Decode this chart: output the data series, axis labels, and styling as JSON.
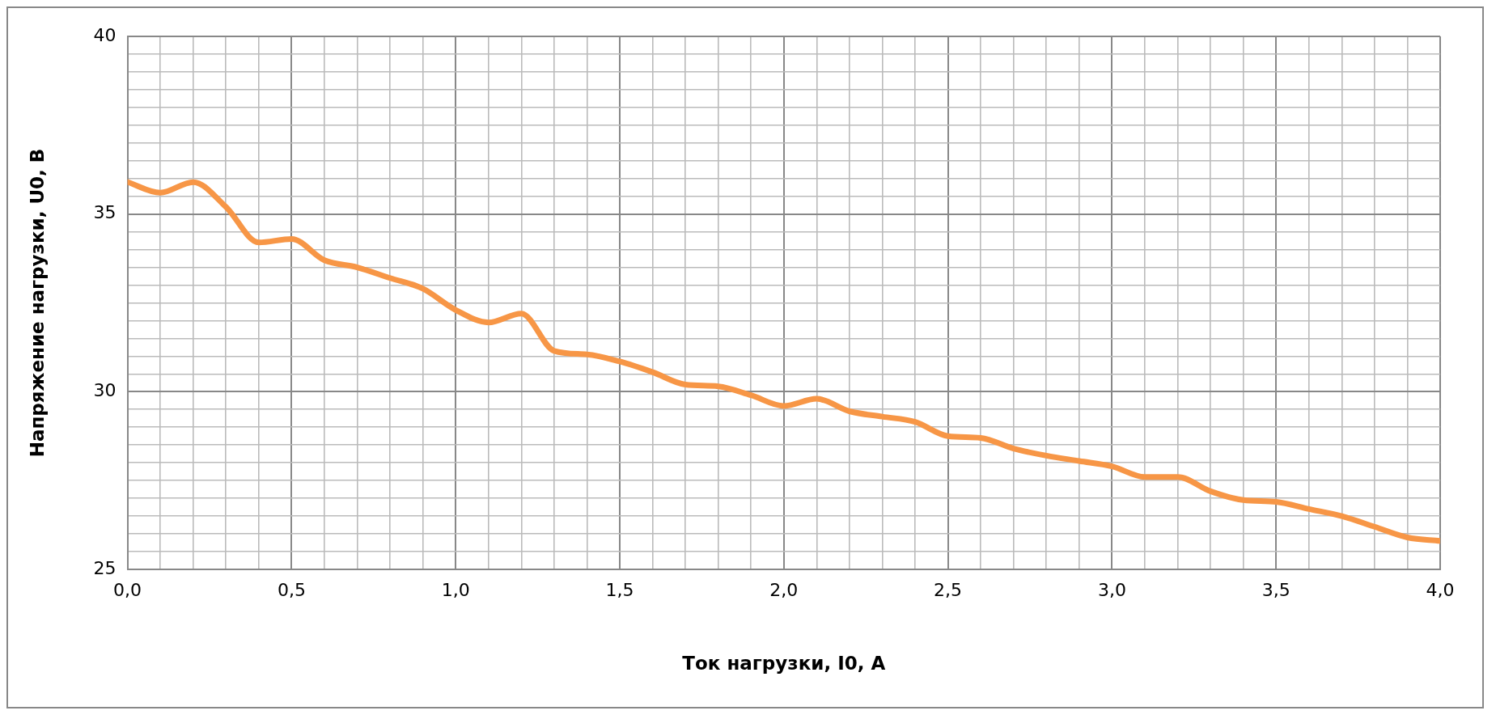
{
  "chart_data": {
    "type": "line",
    "xlabel": "Ток нагрузки, I0, А",
    "ylabel": "Напряжение нагрузки, U0, В",
    "x": [
      0,
      0.1,
      0.2,
      0.3,
      0.4,
      0.5,
      0.6,
      0.7,
      0.8,
      0.9,
      1.0,
      1.1,
      1.2,
      1.3,
      1.4,
      1.5,
      1.6,
      1.7,
      1.8,
      1.9,
      2.0,
      2.1,
      2.2,
      2.3,
      2.4,
      2.5,
      2.6,
      2.7,
      2.8,
      2.9,
      3.0,
      3.1,
      3.2,
      3.3,
      3.4,
      3.5,
      3.6,
      3.7,
      3.8,
      3.9,
      4.0
    ],
    "series": [
      {
        "color": "#f79646",
        "values": [
          35.9,
          35.6,
          35.9,
          35.2,
          34.2,
          34.3,
          33.7,
          33.5,
          33.2,
          32.9,
          32.3,
          31.95,
          32.2,
          31.15,
          31.05,
          30.85,
          30.55,
          30.2,
          30.15,
          29.9,
          29.6,
          29.8,
          29.45,
          29.3,
          29.15,
          28.75,
          28.7,
          28.4,
          28.2,
          28.05,
          27.9,
          27.6,
          27.6,
          27.2,
          26.95,
          26.9,
          26.7,
          26.5,
          26.2,
          25.9,
          25.8
        ]
      }
    ],
    "xlim": [
      0,
      4
    ],
    "xticks": [
      {
        "value": 0,
        "label": "0,0"
      },
      {
        "value": 0.1,
        "label": null
      },
      {
        "value": 0.2,
        "label": null
      },
      {
        "value": 0.3,
        "label": null
      },
      {
        "value": 0.4,
        "label": null
      },
      {
        "value": 0.5,
        "label": "0,5"
      },
      {
        "value": 0.6,
        "label": null
      },
      {
        "value": 0.7,
        "label": null
      },
      {
        "value": 0.8,
        "label": null
      },
      {
        "value": 0.9,
        "label": null
      },
      {
        "value": 1.0,
        "label": "1,0"
      },
      {
        "value": 1.1,
        "label": null
      },
      {
        "value": 1.2,
        "label": null
      },
      {
        "value": 1.3,
        "label": null
      },
      {
        "value": 1.4,
        "label": null
      },
      {
        "value": 1.5,
        "label": "1,5"
      },
      {
        "value": 1.6,
        "label": null
      },
      {
        "value": 1.7,
        "label": null
      },
      {
        "value": 1.8,
        "label": null
      },
      {
        "value": 1.9,
        "label": null
      },
      {
        "value": 2.0,
        "label": "2,0"
      },
      {
        "value": 2.1,
        "label": null
      },
      {
        "value": 2.2,
        "label": null
      },
      {
        "value": 2.3,
        "label": null
      },
      {
        "value": 2.4,
        "label": null
      },
      {
        "value": 2.5,
        "label": "2,5"
      },
      {
        "value": 2.6,
        "label": null
      },
      {
        "value": 2.7,
        "label": null
      },
      {
        "value": 2.8,
        "label": null
      },
      {
        "value": 2.9,
        "label": null
      },
      {
        "value": 3.0,
        "label": "3,0"
      },
      {
        "value": 3.1,
        "label": null
      },
      {
        "value": 3.2,
        "label": null
      },
      {
        "value": 3.3,
        "label": null
      },
      {
        "value": 3.4,
        "label": null
      },
      {
        "value": 3.5,
        "label": "3,5"
      },
      {
        "value": 3.6,
        "label": null
      },
      {
        "value": 3.7,
        "label": null
      },
      {
        "value": 3.8,
        "label": null
      },
      {
        "value": 3.9,
        "label": null
      },
      {
        "value": 4.0,
        "label": "4,0"
      }
    ],
    "ylim": [
      25,
      40
    ],
    "yticks": [
      25,
      {
        "value": 25.5,
        "label": null
      },
      {
        "value": 26,
        "label": null
      },
      {
        "value": 26.5,
        "label": null
      },
      {
        "value": 27,
        "label": null
      },
      {
        "value": 27.5,
        "label": null
      },
      {
        "value": 28,
        "label": null
      },
      {
        "value": 28.5,
        "label": null
      },
      {
        "value": 29,
        "label": null
      },
      {
        "value": 29.5,
        "label": null
      },
      30,
      {
        "value": 30.5,
        "label": null
      },
      {
        "value": 31,
        "label": null
      },
      {
        "value": 31.5,
        "label": null
      },
      {
        "value": 32,
        "label": null
      },
      {
        "value": 32.5,
        "label": null
      },
      {
        "value": 33,
        "label": null
      },
      {
        "value": 33.5,
        "label": null
      },
      {
        "value": 34,
        "label": null
      },
      {
        "value": 34.5,
        "label": null
      },
      35,
      {
        "value": 35.5,
        "label": null
      },
      {
        "value": 36,
        "label": null
      },
      {
        "value": 36.5,
        "label": null
      },
      {
        "value": 37,
        "label": null
      },
      {
        "value": 37.5,
        "label": null
      },
      {
        "value": 38,
        "label": null
      },
      {
        "value": 38.5,
        "label": null
      },
      {
        "value": 39,
        "label": null
      },
      {
        "value": 39.5,
        "label": null
      },
      40
    ],
    "grid": true,
    "legend": false,
    "marker": "none",
    "line_style": "solid"
  }
}
